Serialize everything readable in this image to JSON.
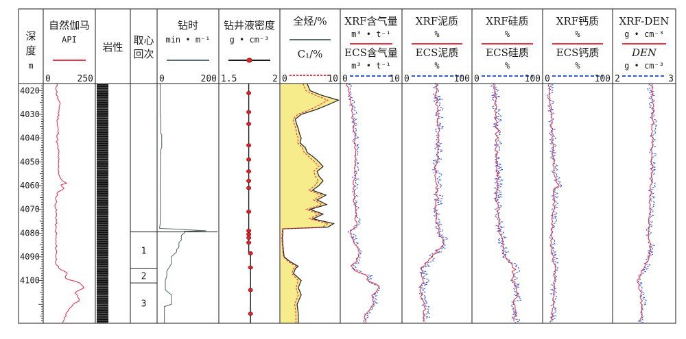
{
  "chart_data": {
    "type": "well-log",
    "depth_axis": {
      "header": [
        "深",
        "度",
        "m"
      ],
      "range": [
        4017,
        4118
      ],
      "ticks": [
        4020,
        4030,
        4040,
        4050,
        4060,
        4070,
        4080,
        4090,
        4100
      ]
    },
    "tracks": [
      {
        "id": "gr",
        "title": "自然伽马",
        "unit": "API",
        "scale": [
          "0",
          "250"
        ],
        "range": [
          0,
          250
        ],
        "legend_color": "#e8354a",
        "legend_style": "solid"
      },
      {
        "id": "lith",
        "title": "岩性"
      },
      {
        "id": "core",
        "title_lines": [
          "取心",
          "回次"
        ],
        "runs": [
          {
            "label": "1",
            "top": 4079.5,
            "bottom": 4095
          },
          {
            "label": "2",
            "top": 4095,
            "bottom": 4101
          },
          {
            "label": "3",
            "top": 4101,
            "bottom": 4118
          }
        ]
      },
      {
        "id": "rop",
        "title": "钻时",
        "unit": "min • m⁻¹",
        "scale": [
          "0",
          "200"
        ],
        "range": [
          0,
          200
        ],
        "legend_color": "#5b6d6d",
        "legend_style": "solid"
      },
      {
        "id": "mud",
        "title": "钻井液密度",
        "unit": "g • cm⁻³",
        "scale": [
          "1.5",
          "2"
        ],
        "range": [
          1.5,
          2.0
        ],
        "legend_color": "#1a1a1a",
        "marker_color": "#d8252b"
      },
      {
        "id": "gas",
        "title": "全烃/%",
        "title2": "C₁/%",
        "scale": [
          "0",
          "10"
        ],
        "range": [
          0,
          10
        ],
        "legend_color": "#5b6d6d",
        "legend2_color": "#e8354a",
        "fill_color": "#f7ec8c"
      },
      {
        "id": "gasx",
        "title": "XRF含气量",
        "unit": "m³ • t⁻¹",
        "title2": "ECS含气量",
        "unit2": "m³ • t⁻¹",
        "scale": [
          "0",
          "10"
        ],
        "range": [
          0,
          10
        ],
        "legend_color": "#e8354a",
        "legend2_color": "#2f56d8"
      },
      {
        "id": "clay",
        "title": "XRF泥质",
        "unit": "%",
        "title2": "ECS泥质",
        "unit2": "%",
        "scale": [
          "0",
          "100"
        ],
        "range": [
          0,
          100
        ],
        "legend_color": "#e8354a",
        "legend2_color": "#2f56d8"
      },
      {
        "id": "si",
        "title": "XRF硅质",
        "unit": "%",
        "title2": "ECS硅质",
        "unit2": "%",
        "scale": [
          "0",
          "100"
        ],
        "range": [
          0,
          100
        ],
        "legend_color": "#e8354a",
        "legend2_color": "#2f56d8"
      },
      {
        "id": "ca",
        "title": "XRF钙质",
        "unit": "%",
        "title2": "ECS钙质",
        "unit2": "%",
        "scale": [
          "0",
          "100"
        ],
        "range": [
          0,
          100
        ],
        "legend_color": "#e8354a",
        "legend2_color": "#2f56d8"
      },
      {
        "id": "den",
        "title": "XRF-DEN",
        "unit": "g • cm⁻³",
        "title2": "DEN",
        "unit2": "g • cm⁻³",
        "scale": [
          "2",
          "3"
        ],
        "range": [
          2,
          3
        ],
        "legend_color": "#e8354a",
        "legend2_color": "#2f56d8"
      }
    ],
    "series": {
      "gr": {
        "depth": [
          4017,
          4022,
          4026,
          4030,
          4034,
          4038,
          4042,
          4046,
          4050,
          4054,
          4057,
          4059,
          4060,
          4061,
          4063,
          4066,
          4070,
          4074,
          4078,
          4080,
          4084,
          4088,
          4092,
          4095,
          4097,
          4099,
          4101,
          4103,
          4105,
          4108,
          4112,
          4116,
          4118
        ],
        "value": [
          62,
          64,
          78,
          72,
          66,
          70,
          64,
          72,
          70,
          74,
          78,
          110,
          70,
          105,
          66,
          60,
          58,
          62,
          57,
          60,
          58,
          62,
          60,
          70,
          120,
          100,
          180,
          195,
          155,
          178,
          120,
          100,
          95
        ]
      },
      "rop": {
        "depth": [
          4017,
          4030,
          4031,
          4038,
          4038.5,
          4044,
          4045,
          4050,
          4060,
          4070,
          4076,
          4078,
          4079,
          4079.3,
          4080,
          4081,
          4083,
          4084,
          4086,
          4087,
          4088,
          4090,
          4093,
          4096,
          4098,
          4100,
          4104,
          4106,
          4110,
          4111,
          4116,
          4118
        ],
        "value": [
          8,
          8,
          10,
          10,
          13,
          13,
          9,
          9,
          8,
          9,
          8,
          6,
          160,
          88,
          88,
          78,
          78,
          70,
          70,
          62,
          62,
          45,
          45,
          30,
          30,
          25,
          25,
          45,
          45,
          22,
          22,
          22
        ]
      },
      "mud": {
        "depth": [
          4017,
          4088,
          4089,
          4118
        ],
        "value": [
          1.745,
          1.745,
          1.76,
          1.76
        ],
        "markers": [
          4021,
          4029,
          4034,
          4043,
          4049,
          4054,
          4058,
          4061,
          4071,
          4079,
          4080.5,
          4082,
          4084,
          4088.5,
          4094.5,
          4104,
          4114
        ]
      },
      "gas_total": {
        "depth": [
          4017,
          4020,
          4022,
          4024,
          4026,
          4028,
          4030,
          4032,
          4034,
          4036,
          4038,
          4040,
          4042,
          4044,
          4046,
          4048,
          4050,
          4052,
          4054,
          4056,
          4058,
          4060,
          4062,
          4064,
          4066,
          4068,
          4070,
          4072,
          4074,
          4076,
          4077.5,
          4078.2,
          4080,
          4082,
          4085,
          4088,
          4090,
          4092,
          4094,
          4095,
          4097,
          4100,
          4103,
          4106,
          4110,
          4114,
          4118
        ],
        "value": [
          4.5,
          5,
          7,
          9.8,
          8,
          6,
          3.5,
          2.5,
          2.7,
          3,
          3.2,
          3.5,
          3.3,
          4.2,
          4.5,
          5.6,
          6.5,
          7.2,
          6.2,
          6.5,
          7.2,
          6.5,
          5.4,
          7.7,
          6.2,
          7.8,
          5,
          7.2,
          5.5,
          9,
          8,
          0.4,
          0.4,
          0.3,
          0.4,
          0.5,
          0.6,
          1.6,
          3,
          2.5,
          2.2,
          3.5,
          3,
          3.5,
          2.8,
          3,
          3
        ]
      },
      "gas_c1": {
        "depth": [
          4017,
          4020,
          4022,
          4024,
          4026,
          4028,
          4030,
          4032,
          4034,
          4036,
          4038,
          4040,
          4042,
          4044,
          4046,
          4048,
          4050,
          4052,
          4054,
          4056,
          4058,
          4060,
          4062,
          4064,
          4066,
          4068,
          4070,
          4072,
          4074,
          4076,
          4077.5,
          4078.2,
          4080,
          4082,
          4085,
          4088,
          4090,
          4092,
          4094,
          4095,
          4097,
          4100,
          4103,
          4106,
          4110,
          4114,
          4118
        ],
        "value": [
          3.8,
          4.3,
          6,
          8,
          6.6,
          5,
          2.9,
          2.1,
          2.3,
          2.6,
          2.7,
          3,
          2.9,
          3.7,
          4,
          4.9,
          5.8,
          6.5,
          5.6,
          5.9,
          6.4,
          5.8,
          4.8,
          6.9,
          5.6,
          7,
          4.4,
          6.5,
          4.9,
          8,
          7.1,
          0.3,
          0.3,
          0.2,
          0.3,
          0.4,
          0.5,
          1.3,
          2.6,
          2.2,
          1.9,
          3,
          2.6,
          3,
          2.4,
          2.6,
          2.6
        ]
      },
      "gasx_xrf": {
        "depth": [
          4017,
          4024,
          4032,
          4040,
          4050,
          4060,
          4068,
          4075,
          4078,
          4079,
          4081,
          4084,
          4088,
          4092,
          4094,
          4096,
          4098,
          4100,
          4102,
          4104,
          4106,
          4110,
          4114,
          4118
        ],
        "value": [
          1,
          1.6,
          2,
          2.3,
          2.5,
          2.1,
          2.3,
          2.5,
          2.4,
          1.5,
          1.8,
          2.3,
          3,
          2.5,
          1.5,
          2.5,
          4.5,
          4.2,
          6.2,
          6.3,
          5.2,
          5.5,
          4,
          4
        ]
      },
      "gasx_ecs": {
        "depth": [
          4017,
          4024,
          4032,
          4040,
          4050,
          4060,
          4068,
          4075,
          4078,
          4079,
          4081,
          4084,
          4088,
          4092,
          4094,
          4096,
          4098,
          4100,
          4102,
          4104,
          4106,
          4110,
          4114,
          4118
        ],
        "value": [
          1.2,
          1.8,
          2.2,
          2.5,
          2.6,
          2.3,
          2.5,
          2.7,
          2.5,
          1.6,
          2,
          2.5,
          3.2,
          2.8,
          1.8,
          2.8,
          4.8,
          4.4,
          6,
          6.5,
          5.5,
          5.8,
          4.4,
          4.2
        ]
      },
      "clay_xrf": {
        "depth": [
          4017,
          4025,
          4035,
          4045,
          4055,
          4065,
          4075,
          4080,
          4085,
          4090,
          4095,
          4100,
          4105,
          4110,
          4118
        ],
        "value": [
          48,
          50,
          52,
          50,
          48,
          50,
          48,
          55,
          60,
          42,
          28,
          30,
          26,
          32,
          30
        ]
      },
      "clay_ecs": {
        "depth": [
          4017,
          4025,
          4035,
          4045,
          4055,
          4065,
          4075,
          4080,
          4085,
          4090,
          4095,
          4100,
          4105,
          4110,
          4118
        ],
        "value": [
          50,
          52,
          54,
          51,
          50,
          52,
          50,
          57,
          62,
          44,
          30,
          32,
          28,
          34,
          32
        ]
      },
      "si_xrf": {
        "depth": [
          4017,
          4025,
          4035,
          4045,
          4055,
          4065,
          4075,
          4080,
          4085,
          4090,
          4095,
          4100,
          4105,
          4110,
          4118
        ],
        "value": [
          32,
          33,
          35,
          34,
          36,
          35,
          38,
          40,
          42,
          48,
          60,
          58,
          65,
          60,
          62
        ]
      },
      "si_ecs": {
        "depth": [
          4017,
          4025,
          4035,
          4045,
          4055,
          4065,
          4075,
          4080,
          4085,
          4090,
          4095,
          4100,
          4105,
          4110,
          4118
        ],
        "value": [
          33,
          34,
          36,
          35,
          37,
          36,
          39,
          41,
          43,
          49,
          61,
          59,
          66,
          61,
          63
        ]
      },
      "ca_xrf": {
        "depth": [
          4017,
          4025,
          4035,
          4045,
          4055,
          4060,
          4062,
          4065,
          4075,
          4080,
          4085,
          4090,
          4095,
          4100,
          4105,
          4110,
          4118
        ],
        "value": [
          8,
          10,
          12,
          14,
          16,
          22,
          14,
          16,
          14,
          12,
          12,
          14,
          18,
          16,
          15,
          14,
          12
        ]
      },
      "ca_ecs": {
        "depth": [
          4017,
          4025,
          4035,
          4045,
          4055,
          4060,
          4062,
          4065,
          4075,
          4080,
          4085,
          4090,
          4095,
          4100,
          4105,
          4110,
          4118
        ],
        "value": [
          9,
          11,
          13,
          15,
          17,
          24,
          15,
          17,
          15,
          13,
          13,
          15,
          19,
          17,
          16,
          15,
          13
        ]
      },
      "den_xrf": {
        "depth": [
          4017,
          4025,
          4035,
          4045,
          4055,
          4065,
          4075,
          4080,
          4085,
          4090,
          4095,
          4100,
          4105,
          4110,
          4118
        ],
        "value": [
          2.62,
          2.64,
          2.64,
          2.62,
          2.63,
          2.6,
          2.58,
          2.56,
          2.6,
          2.58,
          2.48,
          2.4,
          2.44,
          2.46,
          2.44
        ]
      },
      "den_ecs": {
        "depth": [
          4017,
          4025,
          4035,
          4045,
          4055,
          4065,
          4075,
          4080,
          4085,
          4090,
          4095,
          4100,
          4105,
          4110,
          4118
        ],
        "value": [
          2.6,
          2.62,
          2.66,
          2.64,
          2.65,
          2.62,
          2.6,
          2.58,
          2.62,
          2.6,
          2.52,
          2.44,
          2.46,
          2.5,
          2.46
        ]
      }
    }
  }
}
